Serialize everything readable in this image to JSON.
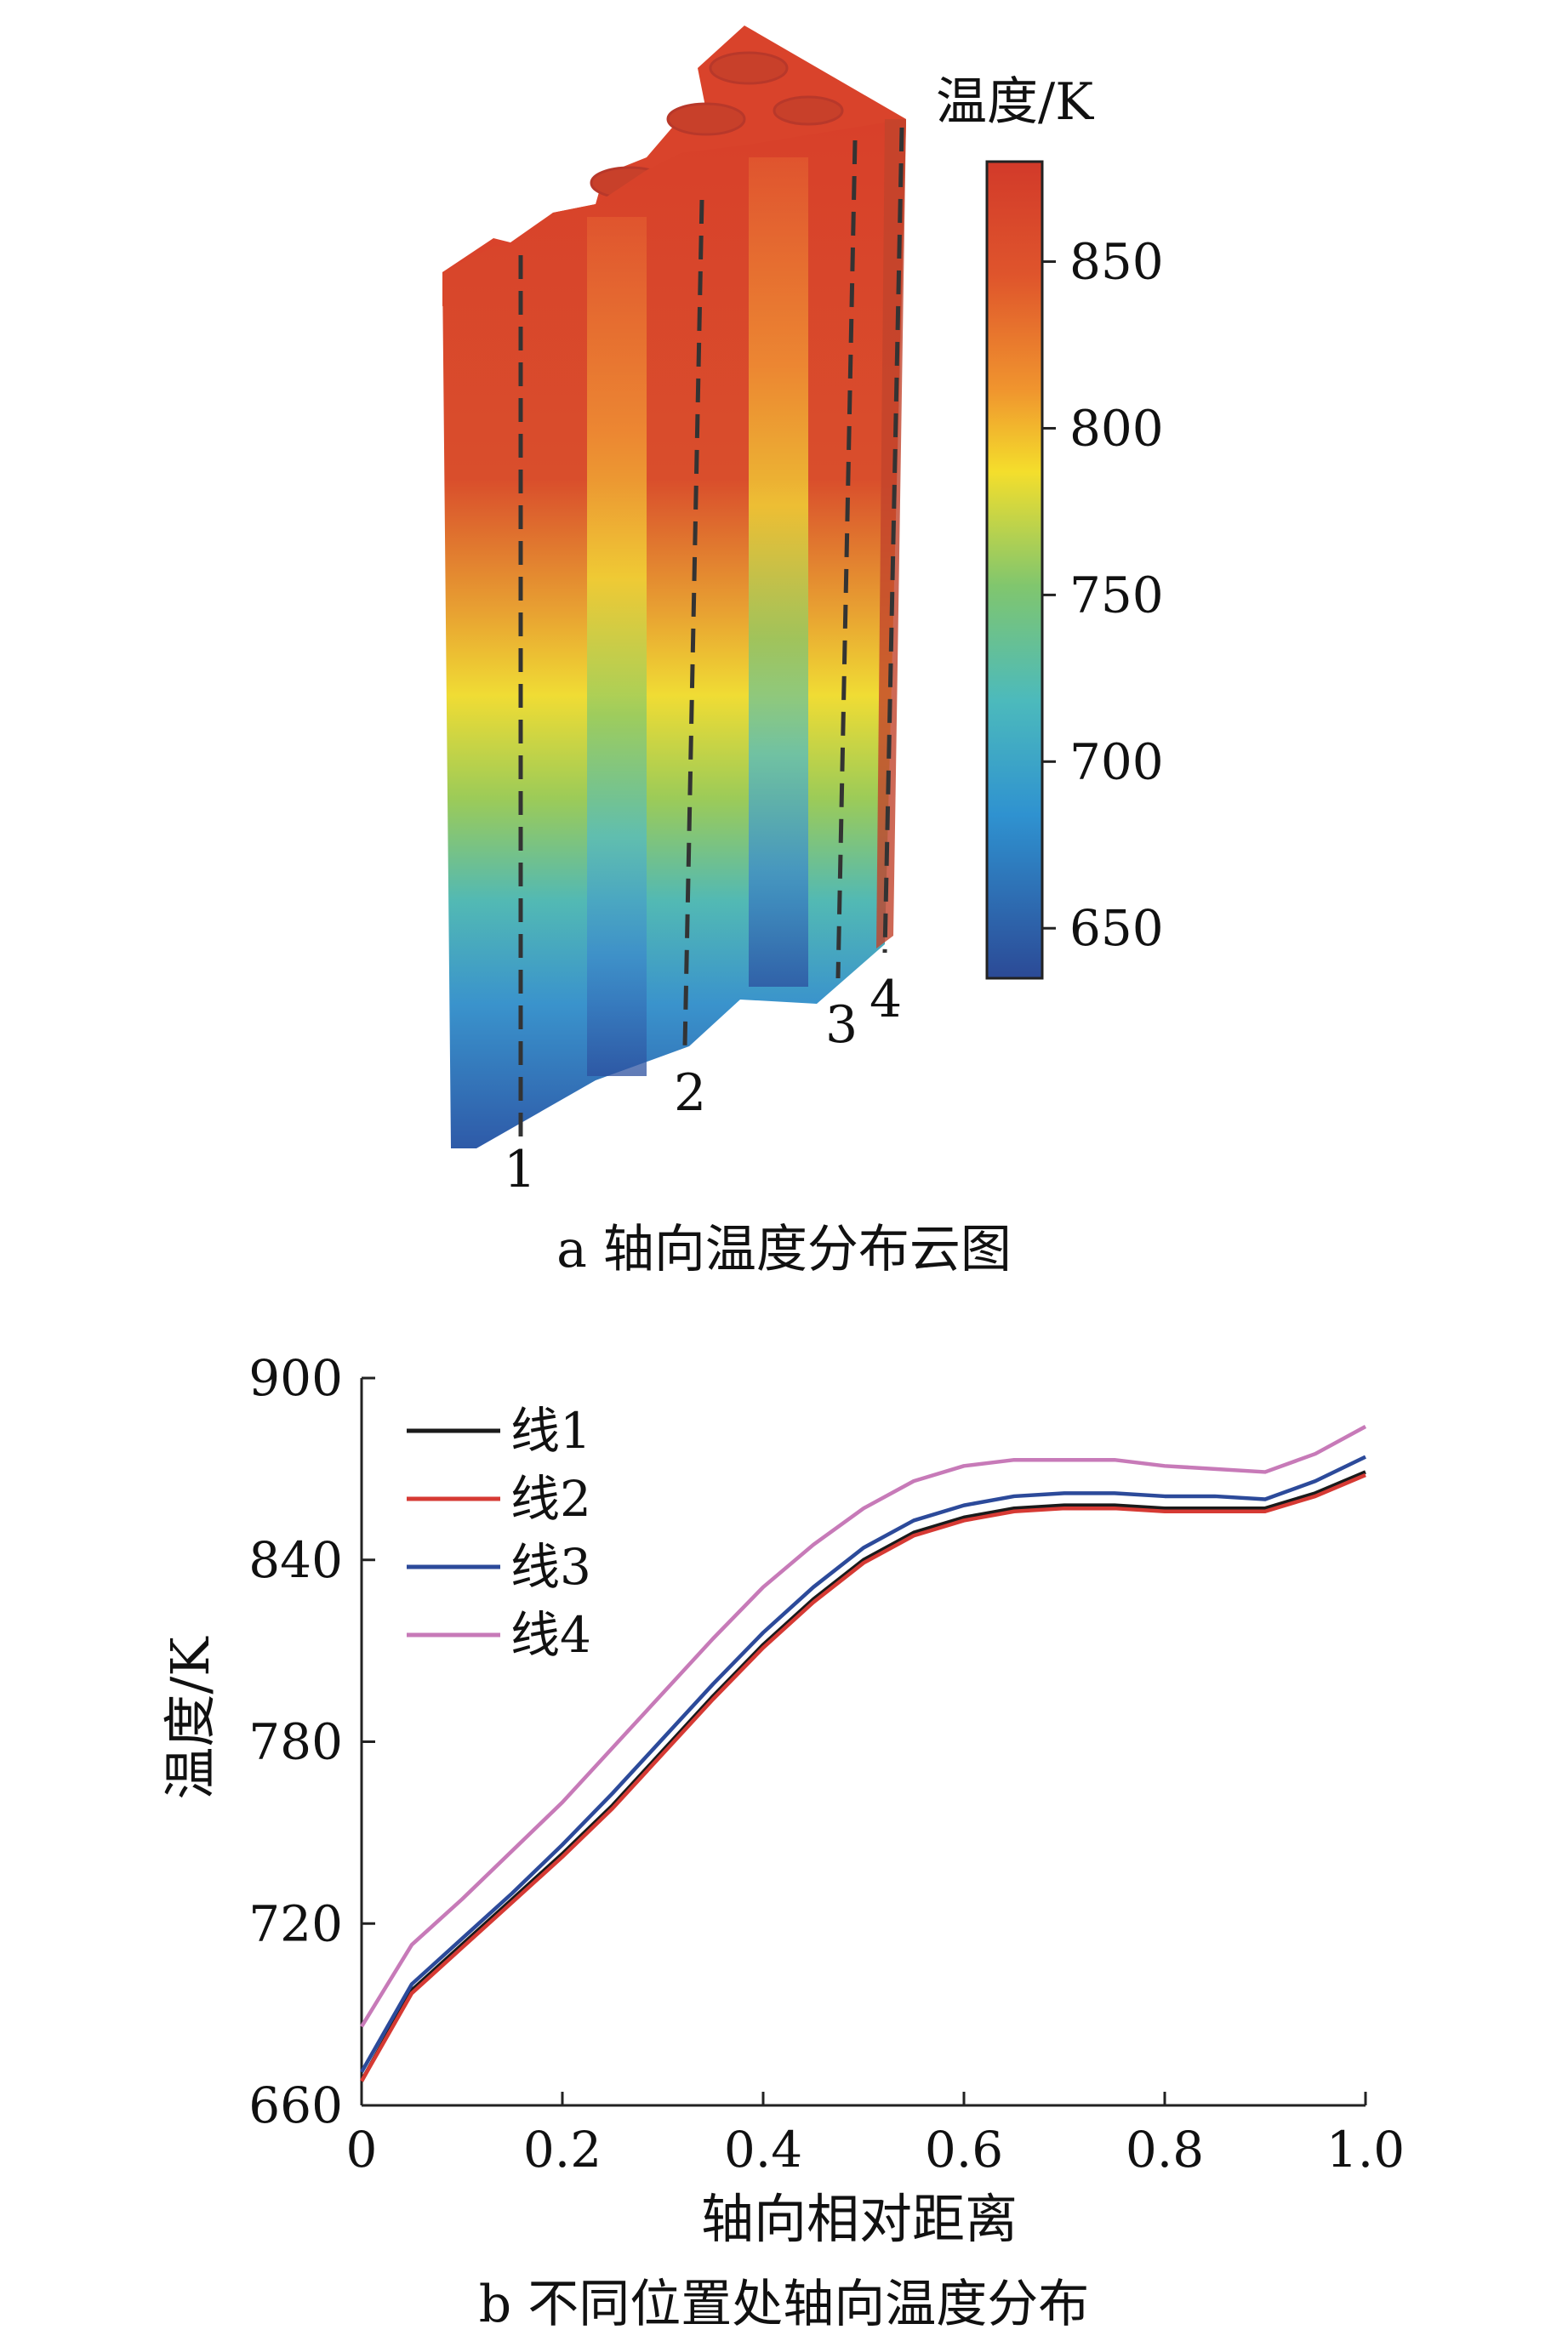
{
  "panel_a": {
    "caption": "a  轴向温度分布云图",
    "colorbar": {
      "title": "温度/K",
      "ticks": [
        "850",
        "800",
        "750",
        "700",
        "650"
      ],
      "tick_values": [
        850,
        800,
        750,
        700,
        650
      ],
      "range": [
        635,
        880
      ],
      "colors": [
        "#2e4f9c",
        "#2e86c8",
        "#5cc4c8",
        "#7cc870",
        "#f2e32a",
        "#f29a2e",
        "#e2532c",
        "#d83a2a"
      ]
    },
    "line_labels": [
      "1",
      "2",
      "3",
      "4"
    ]
  },
  "panel_b": {
    "caption": "b  不同位置处轴向温度分布"
  },
  "chart_data": {
    "type": "line",
    "title": "",
    "xlabel": "轴向相对距离",
    "ylabel": "温度/K",
    "xlim": [
      0,
      1.0
    ],
    "ylim": [
      660,
      900
    ],
    "xticks": [
      "0",
      "0.2",
      "0.4",
      "0.6",
      "0.8",
      "1.0"
    ],
    "xtick_values": [
      0,
      0.2,
      0.4,
      0.6,
      0.8,
      1.0
    ],
    "yticks": [
      "660",
      "720",
      "780",
      "840",
      "900"
    ],
    "ytick_values": [
      660,
      720,
      780,
      840,
      900
    ],
    "legend_position": "top-left",
    "x": [
      0,
      0.05,
      0.1,
      0.15,
      0.2,
      0.25,
      0.3,
      0.35,
      0.4,
      0.45,
      0.5,
      0.55,
      0.6,
      0.65,
      0.7,
      0.75,
      0.8,
      0.85,
      0.9,
      0.95,
      1.0
    ],
    "series": [
      {
        "name": "线1",
        "color": "#1a1a1a",
        "values": [
          668,
          698,
          713,
          728,
          743,
          759,
          777,
          795,
          812,
          827,
          840,
          849,
          854,
          857,
          858,
          858,
          857,
          857,
          857,
          862,
          869
        ]
      },
      {
        "name": "线2",
        "color": "#d63a34",
        "values": [
          668,
          697,
          712,
          727,
          742,
          758,
          776,
          794,
          811,
          826,
          839,
          848,
          853,
          856,
          857,
          857,
          856,
          856,
          856,
          861,
          868
        ]
      },
      {
        "name": "线3",
        "color": "#2c4a9a",
        "values": [
          671,
          700,
          715,
          730,
          746,
          763,
          781,
          799,
          816,
          831,
          844,
          853,
          858,
          861,
          862,
          862,
          861,
          861,
          860,
          866,
          874
        ]
      },
      {
        "name": "线4",
        "color": "#c77ab8",
        "values": [
          686,
          713,
          728,
          744,
          760,
          778,
          796,
          814,
          831,
          845,
          857,
          866,
          871,
          873,
          873,
          873,
          871,
          870,
          869,
          875,
          884
        ]
      }
    ]
  }
}
